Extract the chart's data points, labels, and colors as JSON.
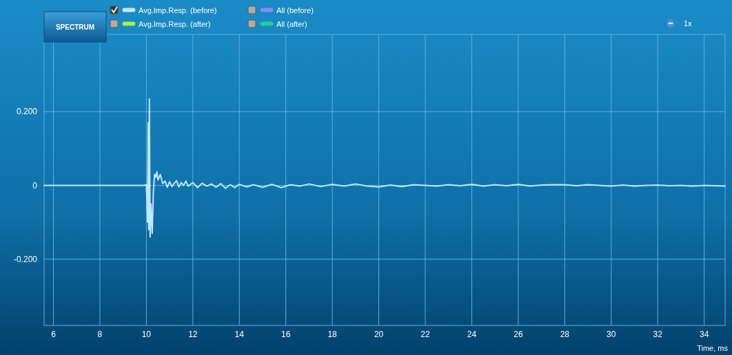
{
  "chart_data": {
    "type": "line",
    "xlabel": "Time, ms",
    "xlim": [
      5.6,
      34.9
    ],
    "xticks": [
      6,
      8,
      10,
      12,
      14,
      16,
      18,
      20,
      22,
      24,
      26,
      28,
      30,
      32,
      34
    ],
    "ylim": [
      -0.38,
      0.41
    ],
    "yticks": [
      {
        "value": 0.2,
        "label": "0.200"
      },
      0,
      {
        "value": -0.2,
        "label": "-0.200"
      }
    ],
    "grid": true,
    "legend": "top",
    "marker": "none",
    "line_style": "solid",
    "annotations": [
      "SPECTRUM",
      "1x"
    ],
    "x": [
      5.6,
      9.9,
      10.0,
      10.05,
      10.08,
      10.1,
      10.13,
      10.16,
      10.2,
      10.25,
      10.3,
      10.35,
      10.4,
      10.45,
      10.5,
      10.6,
      10.7,
      10.8,
      10.9,
      11.0,
      11.1,
      11.2,
      11.3,
      11.4,
      11.5,
      11.6,
      11.7,
      11.8,
      12.0,
      12.2,
      12.4,
      12.6,
      12.8,
      13.0,
      13.2,
      13.4,
      13.6,
      13.8,
      14.0,
      14.3,
      14.6,
      15.0,
      15.4,
      15.8,
      16.2,
      16.6,
      17.0,
      17.5,
      18.0,
      18.5,
      19.0,
      19.5,
      20.0,
      20.5,
      21.0,
      21.5,
      22.0,
      22.5,
      23.0,
      23.5,
      24.0,
      24.5,
      25.0,
      25.5,
      26.0,
      26.5,
      27.0,
      27.5,
      28.0,
      28.5,
      29.0,
      29.5,
      30.0,
      30.5,
      31.0,
      31.5,
      32.0,
      32.5,
      33.0,
      33.5,
      34.0,
      34.5,
      34.9
    ],
    "series": [
      {
        "name": "Avg.Imp.Resp. (before)",
        "color": "#bfe8ff",
        "values": [
          0,
          0,
          0.002,
          -0.1,
          0.17,
          -0.12,
          0.235,
          -0.14,
          -0.05,
          -0.13,
          -0.02,
          0.03,
          0.022,
          0.037,
          0.015,
          0.03,
          0.005,
          0.012,
          -0.005,
          0.01,
          -0.003,
          0.006,
          0.013,
          -0.004,
          0.008,
          0.0,
          0.012,
          -0.002,
          0.008,
          -0.006,
          0.006,
          -0.002,
          0.004,
          -0.005,
          0.005,
          -0.008,
          0.002,
          -0.006,
          0.003,
          -0.004,
          0.002,
          -0.005,
          0.003,
          -0.006,
          0.002,
          -0.002,
          0.004,
          -0.003,
          0.003,
          -0.002,
          0.004,
          -0.002,
          -0.004,
          0.001,
          -0.003,
          0.002,
          0.0,
          -0.002,
          0.002,
          -0.001,
          0.003,
          -0.002,
          0.002,
          -0.001,
          0.003,
          -0.002,
          0.001,
          0.002,
          0.002,
          -0.001,
          0.002,
          0.0,
          -0.002,
          0.001,
          -0.002,
          0.0,
          0.001,
          -0.001,
          0.0,
          -0.002,
          0.0,
          -0.001,
          -0.002
        ]
      },
      {
        "name": "Avg.Imp.Resp. (after)",
        "color": "#a8f040",
        "values": [
          null,
          null,
          null,
          null,
          null,
          null,
          null,
          null,
          null,
          null,
          null,
          null,
          null,
          null,
          null,
          null,
          null,
          null,
          null,
          null,
          null,
          null,
          null,
          null,
          null,
          null,
          null,
          null,
          null,
          null,
          null,
          null,
          null,
          null,
          null,
          null,
          null,
          null,
          null,
          null,
          null,
          null,
          null,
          null,
          null,
          null,
          null,
          null,
          null,
          null,
          null,
          null,
          null,
          null,
          null,
          null,
          null,
          null,
          null,
          null,
          null,
          null,
          null,
          null,
          null,
          null,
          null,
          null,
          null,
          null,
          null,
          null,
          null,
          null,
          null,
          null,
          null,
          null,
          null,
          null,
          null,
          null,
          null
        ]
      },
      {
        "name": "All (before)",
        "color": "#8090f0",
        "values": [
          null,
          null,
          null,
          null,
          null,
          null,
          null,
          null,
          null,
          null,
          null,
          null,
          null,
          null,
          null,
          null,
          null,
          null,
          null,
          null,
          null,
          null,
          null,
          null,
          null,
          null,
          null,
          null,
          null,
          null,
          null,
          null,
          null,
          null,
          null,
          null,
          null,
          null,
          null,
          null,
          null,
          null,
          null,
          null,
          null,
          null,
          null,
          null,
          null,
          null,
          null,
          null,
          null,
          null,
          null,
          null,
          null,
          null,
          null,
          null,
          null,
          null,
          null,
          null,
          null,
          null,
          null,
          null,
          null,
          null,
          null,
          null,
          null,
          null,
          null,
          null,
          null,
          null,
          null,
          null,
          null,
          null,
          null
        ]
      },
      {
        "name": "All (after)",
        "color": "#20d090",
        "values": [
          null,
          null,
          null,
          null,
          null,
          null,
          null,
          null,
          null,
          null,
          null,
          null,
          null,
          null,
          null,
          null,
          null,
          null,
          null,
          null,
          null,
          null,
          null,
          null,
          null,
          null,
          null,
          null,
          null,
          null,
          null,
          null,
          null,
          null,
          null,
          null,
          null,
          null,
          null,
          null,
          null,
          null,
          null,
          null,
          null,
          null,
          null,
          null,
          null,
          null,
          null,
          null,
          null,
          null,
          null,
          null,
          null,
          null,
          null,
          null,
          null,
          null,
          null,
          null,
          null,
          null,
          null,
          null,
          null,
          null,
          null,
          null,
          null,
          null,
          null,
          null,
          null,
          null,
          null,
          null,
          null,
          null,
          null
        ]
      }
    ]
  }
}
